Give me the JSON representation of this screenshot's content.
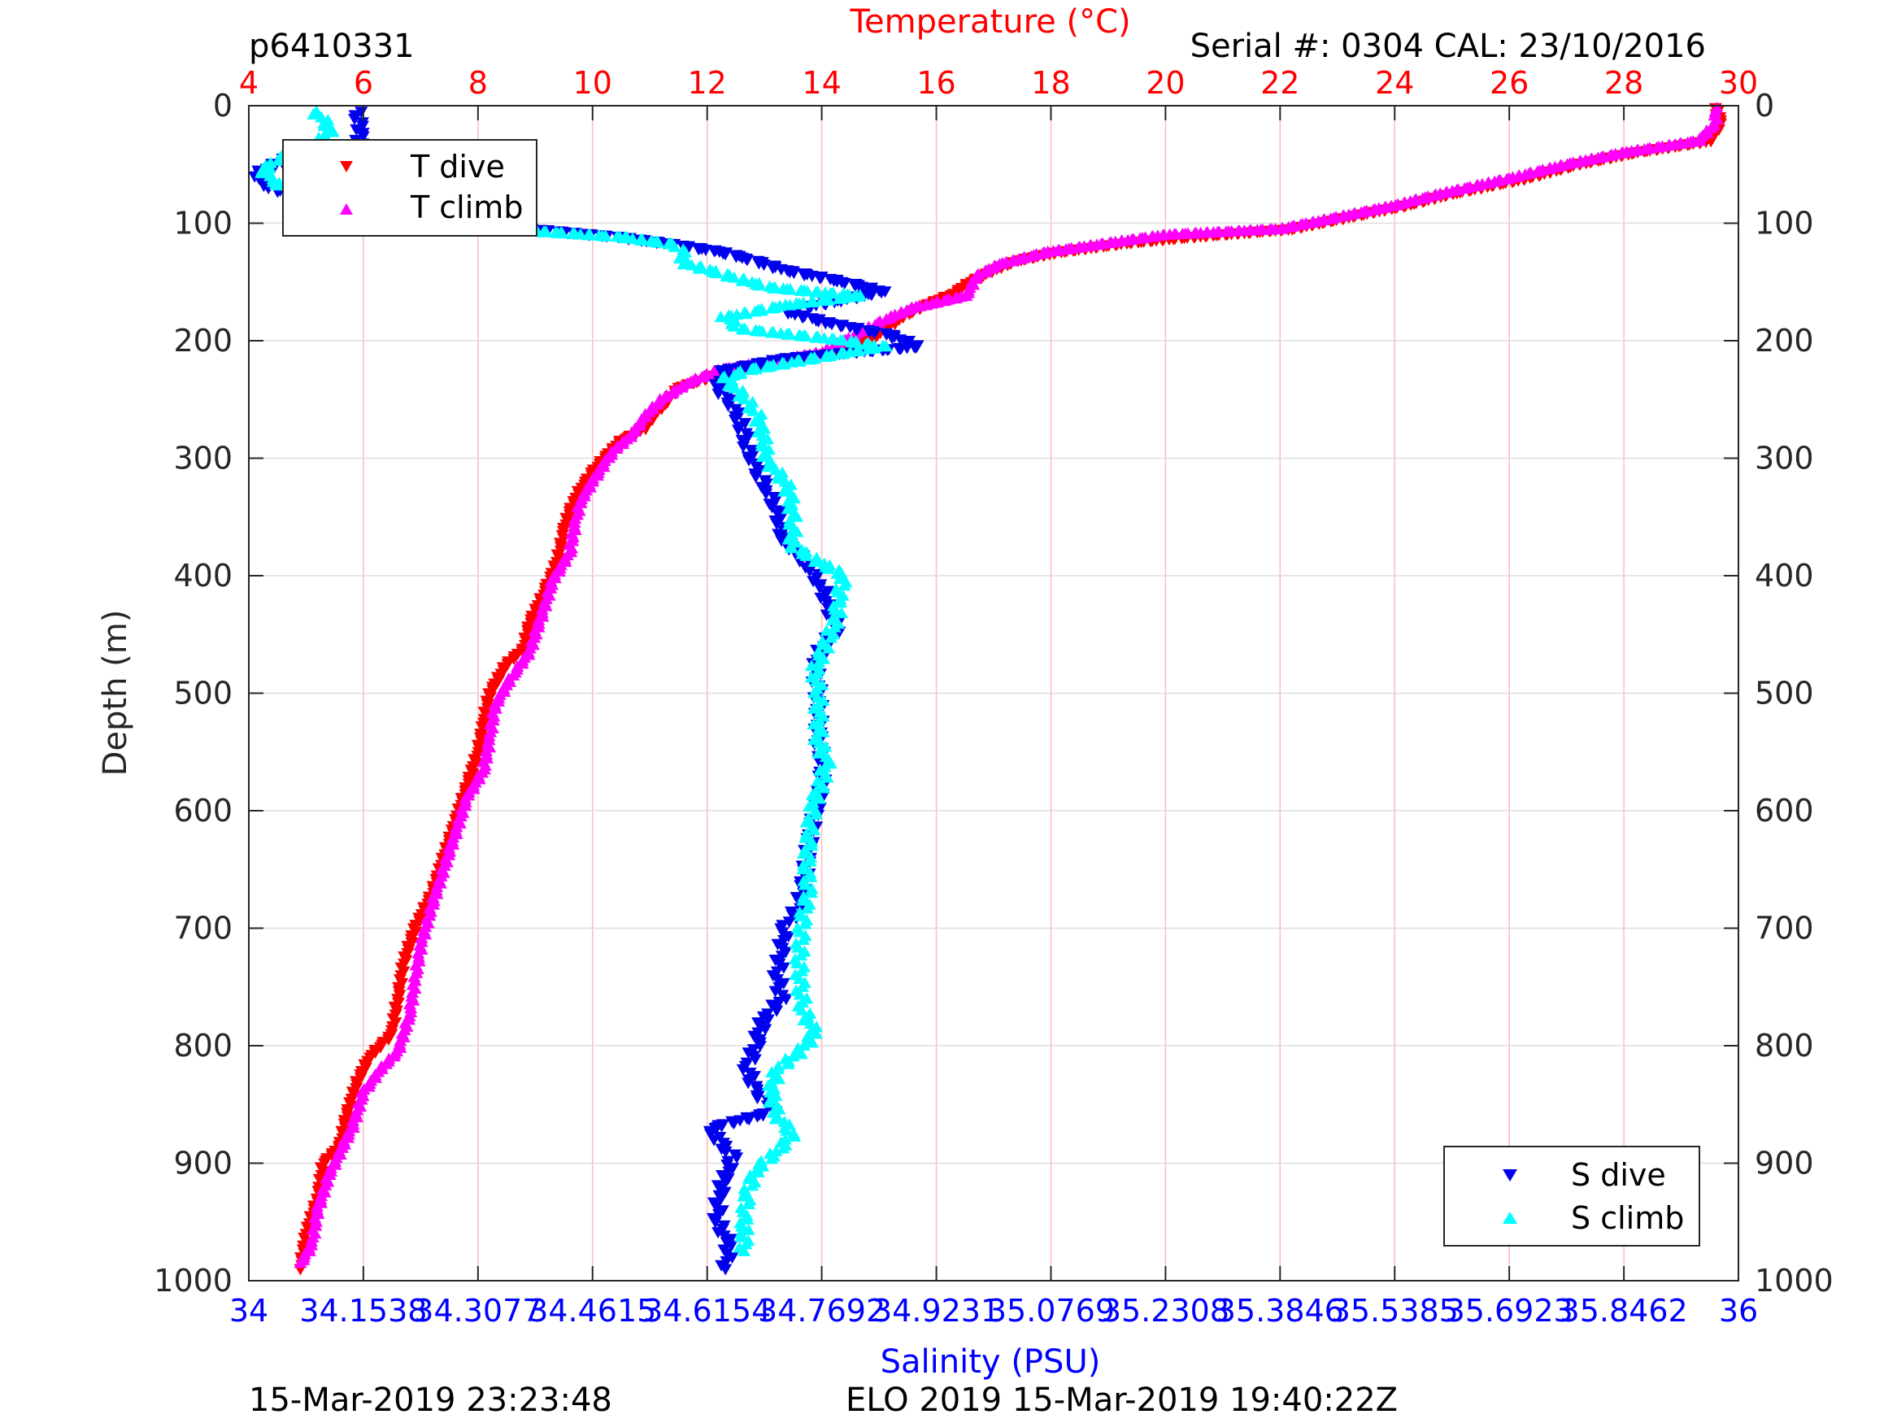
{
  "texts": {
    "profile_id": "p6410331",
    "serial_cal": "Serial #: 0304  CAL: 23/10/2016",
    "top_axis_label": "Temperature (°C)",
    "bottom_axis_label": "Salinity (PSU)",
    "left_axis_label": "Depth (m)",
    "footer_left": "15-Mar-2019 23:23:48",
    "footer_right": "ELO 2019 15-Mar-2019 19:40:22Z",
    "legend_top": [
      "T dive",
      "T climb"
    ],
    "legend_bottom": [
      "S dive",
      "S climb"
    ]
  },
  "colors": {
    "t_dive": "#ff0000",
    "t_climb": "#ff00ff",
    "s_dive": "#0000ee",
    "s_climb": "#00ffff",
    "temperature_axis": "#ff0000",
    "salinity_axis": "#0000ff",
    "grid_vertical": "#ffbbbb",
    "grid_horizontal": "#dddddd"
  },
  "chart_data": {
    "type": "scatter",
    "y": {
      "label": "Depth (m)",
      "lim": [
        0,
        1000
      ],
      "reversed": true,
      "ticks": [
        0,
        100,
        200,
        300,
        400,
        500,
        600,
        700,
        800,
        900,
        1000
      ],
      "tick_labels": [
        "0",
        "100",
        "200",
        "300",
        "400",
        "500",
        "600",
        "700",
        "800",
        "900",
        "1000"
      ]
    },
    "x_top": {
      "label": "Temperature (°C)",
      "lim": [
        4,
        30
      ],
      "ticks": [
        4,
        6,
        8,
        10,
        12,
        14,
        16,
        18,
        20,
        22,
        24,
        26,
        28,
        30
      ],
      "tick_labels": [
        "4",
        "6",
        "8",
        "10",
        "12",
        "14",
        "16",
        "18",
        "20",
        "22",
        "24",
        "26",
        "28",
        "30"
      ]
    },
    "x_bottom": {
      "label": "Salinity (PSU)",
      "lim": [
        34,
        36
      ],
      "ticks": [
        34,
        34.1538,
        34.3077,
        34.4615,
        34.6154,
        34.7692,
        34.9231,
        35.0769,
        35.2308,
        35.3846,
        35.5385,
        35.6923,
        35.8462,
        36
      ],
      "tick_labels": [
        "34",
        "34.1538",
        "34.3077",
        "34.4615",
        "34.6154",
        "34.7692",
        "34.9231",
        "35.0769",
        "35.2308",
        "35.3846",
        "35.5385",
        "35.6923",
        "35.8462",
        "36"
      ]
    },
    "grid": {
      "vertical": true,
      "horizontal": true
    },
    "legends": [
      {
        "placement": "top-left",
        "entries": [
          "T dive",
          "T climb"
        ]
      },
      {
        "placement": "bottom-right",
        "entries": [
          "S dive",
          "S climb"
        ]
      }
    ],
    "series": [
      {
        "name": "T dive",
        "axis": "temperature",
        "marker": "triangle-down",
        "points": [
          [
            29.6,
            2
          ],
          [
            29.7,
            15
          ],
          [
            29.5,
            30
          ],
          [
            28.2,
            40
          ],
          [
            27.2,
            50
          ],
          [
            26.3,
            62
          ],
          [
            25.0,
            75
          ],
          [
            24.2,
            85
          ],
          [
            23.2,
            95
          ],
          [
            22.2,
            105
          ],
          [
            20.4,
            112
          ],
          [
            19.3,
            117
          ],
          [
            18.1,
            125
          ],
          [
            17.4,
            132
          ],
          [
            17.0,
            140
          ],
          [
            16.6,
            150
          ],
          [
            16.3,
            160
          ],
          [
            15.8,
            170
          ],
          [
            15.4,
            180
          ],
          [
            15.0,
            195
          ],
          [
            14.2,
            210
          ],
          [
            13.4,
            218
          ],
          [
            12.4,
            225
          ],
          [
            12.0,
            232
          ],
          [
            11.5,
            240
          ],
          [
            11.3,
            252
          ],
          [
            11.1,
            262
          ],
          [
            10.9,
            275
          ],
          [
            10.5,
            285
          ],
          [
            10.2,
            300
          ],
          [
            10.0,
            312
          ],
          [
            9.8,
            325
          ],
          [
            9.6,
            345
          ],
          [
            9.5,
            362
          ],
          [
            9.4,
            385
          ],
          [
            9.2,
            410
          ],
          [
            8.9,
            440
          ],
          [
            8.8,
            462
          ],
          [
            8.5,
            475
          ],
          [
            8.2,
            500
          ],
          [
            8.1,
            525
          ],
          [
            8.0,
            550
          ],
          [
            7.8,
            580
          ],
          [
            7.6,
            610
          ],
          [
            7.4,
            640
          ],
          [
            7.2,
            670
          ],
          [
            6.9,
            700
          ],
          [
            6.7,
            730
          ],
          [
            6.6,
            760
          ],
          [
            6.5,
            790
          ],
          [
            6.1,
            810
          ],
          [
            5.9,
            830
          ],
          [
            5.7,
            860
          ],
          [
            5.6,
            885
          ],
          [
            5.3,
            900
          ],
          [
            5.2,
            930
          ],
          [
            5.0,
            960
          ],
          [
            4.9,
            990
          ]
        ]
      },
      {
        "name": "T climb",
        "axis": "temperature",
        "marker": "triangle-up",
        "points": [
          [
            29.6,
            2
          ],
          [
            29.6,
            15
          ],
          [
            29.3,
            30
          ],
          [
            28.0,
            40
          ],
          [
            27.0,
            50
          ],
          [
            26.0,
            62
          ],
          [
            24.8,
            75
          ],
          [
            24.0,
            85
          ],
          [
            23.0,
            95
          ],
          [
            22.0,
            105
          ],
          [
            20.0,
            110
          ],
          [
            19.0,
            117
          ],
          [
            17.9,
            125
          ],
          [
            17.1,
            135
          ],
          [
            16.7,
            145
          ],
          [
            16.6,
            155
          ],
          [
            16.5,
            162
          ],
          [
            15.6,
            172
          ],
          [
            15.1,
            182
          ],
          [
            14.6,
            195
          ],
          [
            14.0,
            210
          ],
          [
            13.1,
            218
          ],
          [
            12.2,
            225
          ],
          [
            11.7,
            235
          ],
          [
            11.2,
            250
          ],
          [
            10.9,
            265
          ],
          [
            10.7,
            280
          ],
          [
            10.4,
            292
          ],
          [
            10.2,
            305
          ],
          [
            10.0,
            320
          ],
          [
            9.8,
            335
          ],
          [
            9.7,
            355
          ],
          [
            9.6,
            380
          ],
          [
            9.3,
            405
          ],
          [
            9.1,
            435
          ],
          [
            8.9,
            465
          ],
          [
            8.6,
            485
          ],
          [
            8.3,
            510
          ],
          [
            8.2,
            540
          ],
          [
            8.1,
            565
          ],
          [
            7.8,
            590
          ],
          [
            7.6,
            620
          ],
          [
            7.4,
            650
          ],
          [
            7.2,
            680
          ],
          [
            7.0,
            715
          ],
          [
            6.9,
            745
          ],
          [
            6.8,
            775
          ],
          [
            6.6,
            805
          ],
          [
            6.3,
            820
          ],
          [
            6.0,
            840
          ],
          [
            5.8,
            870
          ],
          [
            5.6,
            890
          ],
          [
            5.4,
            910
          ],
          [
            5.2,
            940
          ],
          [
            5.1,
            970
          ],
          [
            4.9,
            985
          ]
        ]
      },
      {
        "name": "S dive",
        "axis": "salinity",
        "marker": "triangle-down",
        "points": [
          [
            34.145,
            5
          ],
          [
            34.15,
            20
          ],
          [
            34.148,
            32
          ],
          [
            34.05,
            45
          ],
          [
            34.01,
            58
          ],
          [
            34.03,
            70
          ],
          [
            34.08,
            80
          ],
          [
            34.19,
            85
          ],
          [
            34.26,
            90
          ],
          [
            34.31,
            97
          ],
          [
            34.38,
            105
          ],
          [
            34.5,
            112
          ],
          [
            34.57,
            118
          ],
          [
            34.63,
            124
          ],
          [
            34.67,
            130
          ],
          [
            34.72,
            140
          ],
          [
            34.8,
            150
          ],
          [
            34.85,
            158
          ],
          [
            34.8,
            165
          ],
          [
            34.72,
            175
          ],
          [
            34.78,
            185
          ],
          [
            34.86,
            195
          ],
          [
            34.9,
            205
          ],
          [
            34.72,
            215
          ],
          [
            34.64,
            225
          ],
          [
            34.63,
            240
          ],
          [
            34.65,
            255
          ],
          [
            34.66,
            270
          ],
          [
            34.67,
            290
          ],
          [
            34.68,
            310
          ],
          [
            34.7,
            330
          ],
          [
            34.71,
            350
          ],
          [
            34.72,
            370
          ],
          [
            34.75,
            390
          ],
          [
            34.77,
            410
          ],
          [
            34.78,
            430
          ],
          [
            34.79,
            445
          ],
          [
            34.77,
            460
          ],
          [
            34.76,
            480
          ],
          [
            34.765,
            500
          ],
          [
            34.765,
            520
          ],
          [
            34.765,
            540
          ],
          [
            34.77,
            560
          ],
          [
            34.77,
            580
          ],
          [
            34.76,
            600
          ],
          [
            34.755,
            620
          ],
          [
            34.75,
            640
          ],
          [
            34.745,
            660
          ],
          [
            34.74,
            680
          ],
          [
            34.72,
            700
          ],
          [
            34.715,
            720
          ],
          [
            34.71,
            740
          ],
          [
            34.715,
            760
          ],
          [
            34.69,
            780
          ],
          [
            34.68,
            800
          ],
          [
            34.67,
            820
          ],
          [
            34.68,
            840
          ],
          [
            34.71,
            855
          ],
          [
            34.62,
            870
          ],
          [
            34.63,
            880
          ],
          [
            34.65,
            895
          ],
          [
            34.64,
            910
          ],
          [
            34.63,
            930
          ],
          [
            34.63,
            950
          ],
          [
            34.645,
            970
          ],
          [
            34.64,
            990
          ]
        ]
      },
      {
        "name": "S climb",
        "axis": "salinity",
        "marker": "triangle-up",
        "points": [
          [
            34.09,
            5
          ],
          [
            34.11,
            20
          ],
          [
            34.09,
            35
          ],
          [
            34.04,
            45
          ],
          [
            34.02,
            55
          ],
          [
            34.03,
            65
          ],
          [
            34.08,
            75
          ],
          [
            34.15,
            85
          ],
          [
            34.2,
            92
          ],
          [
            34.27,
            100
          ],
          [
            34.36,
            106
          ],
          [
            34.5,
            112
          ],
          [
            34.57,
            118
          ],
          [
            34.58,
            125
          ],
          [
            34.59,
            135
          ],
          [
            34.7,
            155
          ],
          [
            34.82,
            162
          ],
          [
            34.72,
            170
          ],
          [
            34.64,
            180
          ],
          [
            34.66,
            190
          ],
          [
            34.8,
            200
          ],
          [
            34.85,
            205
          ],
          [
            34.76,
            215
          ],
          [
            34.67,
            225
          ],
          [
            34.64,
            232
          ],
          [
            34.66,
            245
          ],
          [
            34.68,
            260
          ],
          [
            34.69,
            275
          ],
          [
            34.69,
            290
          ],
          [
            34.7,
            305
          ],
          [
            34.72,
            320
          ],
          [
            34.73,
            340
          ],
          [
            34.73,
            360
          ],
          [
            34.73,
            375
          ],
          [
            34.77,
            390
          ],
          [
            34.8,
            400
          ],
          [
            34.79,
            420
          ],
          [
            34.79,
            435
          ],
          [
            34.78,
            450
          ],
          [
            34.77,
            465
          ],
          [
            34.76,
            480
          ],
          [
            34.765,
            500
          ],
          [
            34.765,
            520
          ],
          [
            34.765,
            540
          ],
          [
            34.775,
            560
          ],
          [
            34.77,
            575
          ],
          [
            34.76,
            590
          ],
          [
            34.755,
            610
          ],
          [
            34.75,
            630
          ],
          [
            34.75,
            650
          ],
          [
            34.75,
            670
          ],
          [
            34.745,
            690
          ],
          [
            34.74,
            710
          ],
          [
            34.74,
            730
          ],
          [
            34.74,
            750
          ],
          [
            34.745,
            770
          ],
          [
            34.76,
            790
          ],
          [
            34.74,
            805
          ],
          [
            34.71,
            820
          ],
          [
            34.7,
            840
          ],
          [
            34.71,
            860
          ],
          [
            34.73,
            875
          ],
          [
            34.71,
            890
          ],
          [
            34.68,
            905
          ],
          [
            34.67,
            925
          ],
          [
            34.665,
            945
          ],
          [
            34.665,
            960
          ],
          [
            34.665,
            975
          ]
        ]
      }
    ]
  }
}
